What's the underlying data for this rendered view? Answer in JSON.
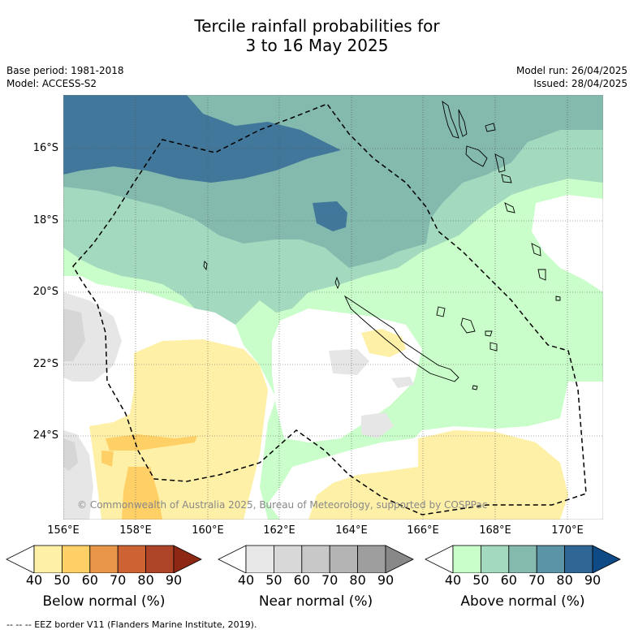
{
  "title_line1": "Tercile rainfall probabilities for",
  "title_line2": "3 to 16 May 2025",
  "base_period": "Base period: 1981-2018",
  "model": "Model: ACCESS-S2",
  "model_run": "Model run: 26/04/2025",
  "issued": "Issued: 28/04/2025",
  "lat_labels": [
    "16°S",
    "18°S",
    "20°S",
    "22°S",
    "24°S"
  ],
  "lon_labels": [
    "156°E",
    "158°E",
    "160°E",
    "162°E",
    "164°E",
    "166°E",
    "168°E",
    "170°E"
  ],
  "copyright": "© Commonwealth of Australia 2025, Bureau of Meteorology, supported by COSPPac",
  "colorbars": [
    {
      "label": "Below normal (%)",
      "ticks": [
        "40",
        "50",
        "60",
        "70",
        "80",
        "90"
      ],
      "colors": [
        "#ffffff",
        "#fff0a8",
        "#ffd066",
        "#e8964a",
        "#cd6233",
        "#ad4427",
        "#8c2814"
      ]
    },
    {
      "label": "Near normal (%)",
      "ticks": [
        "40",
        "50",
        "60",
        "70",
        "80",
        "90"
      ],
      "colors": [
        "#ffffff",
        "#e8e8e8",
        "#d8d8d8",
        "#c8c8c8",
        "#b4b4b4",
        "#9e9e9e",
        "#888888"
      ]
    },
    {
      "label": "Above normal (%)",
      "ticks": [
        "40",
        "50",
        "60",
        "70",
        "80",
        "90"
      ],
      "colors": [
        "#ffffff",
        "#c9fdc9",
        "#a3d9bf",
        "#84b9ad",
        "#5a94a6",
        "#2f6695",
        "#0e4a86"
      ]
    }
  ],
  "footnote": "--  --  -- EEZ border V11 (Flanders Marine Institute, 2019)."
}
